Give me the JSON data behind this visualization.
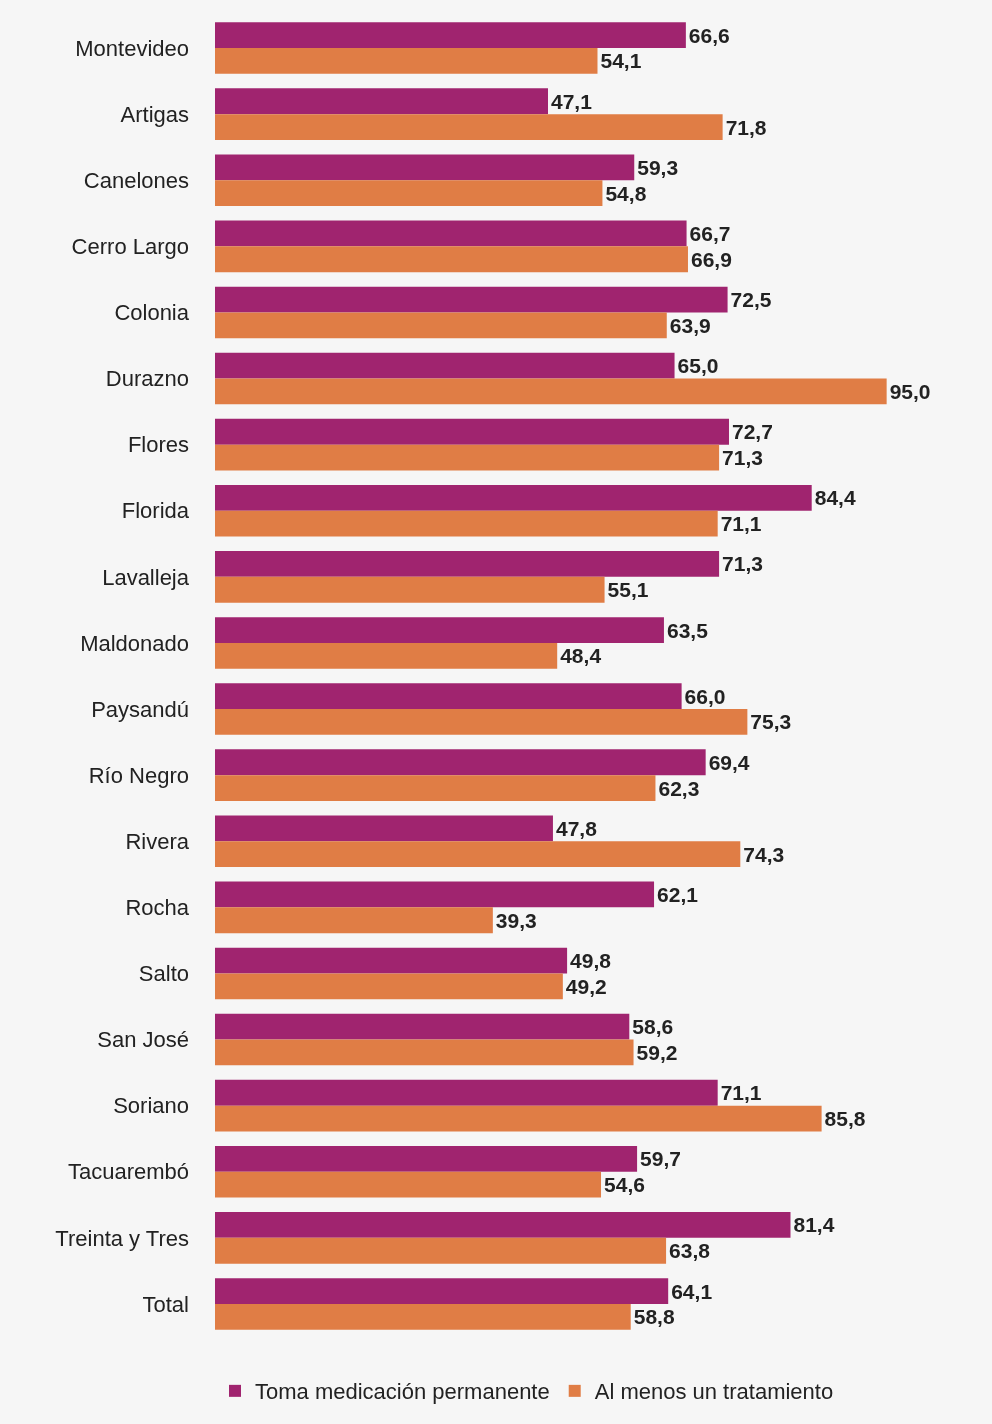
{
  "chart_data": {
    "type": "bar",
    "orientation": "horizontal",
    "legend": "bottom",
    "categories": [
      "Montevideo",
      "Artigas",
      "Canelones",
      "Cerro Largo",
      "Colonia",
      "Durazno",
      "Flores",
      "Florida",
      "Lavalleja",
      "Maldonado",
      "Paysandú",
      "Río Negro",
      "Rivera",
      "Rocha",
      "Salto",
      "San José",
      "Soriano",
      "Tacuarembó",
      "Treinta y Tres",
      "Total"
    ],
    "series": [
      {
        "name": "Toma medicación permanente",
        "color": "#a0246f",
        "values": [
          66.6,
          47.1,
          59.3,
          66.7,
          72.5,
          65.0,
          72.7,
          84.4,
          71.3,
          63.5,
          66.0,
          69.4,
          47.8,
          62.1,
          49.8,
          58.6,
          71.1,
          59.7,
          81.4,
          64.1
        ],
        "value_labels": [
          "66,6",
          "47,1",
          "59,3",
          "66,7",
          "72,5",
          "65,0",
          "72,7",
          "84,4",
          "71,3",
          "63,5",
          "66,0",
          "69,4",
          "47,8",
          "62,1",
          "49,8",
          "58,6",
          "71,1",
          "59,7",
          "81,4",
          "64,1"
        ]
      },
      {
        "name": "Al menos un tratamiento",
        "color": "#e07d45",
        "values": [
          54.1,
          71.8,
          54.8,
          66.9,
          63.9,
          95.0,
          71.3,
          71.1,
          55.1,
          48.4,
          75.3,
          62.3,
          74.3,
          39.3,
          49.2,
          59.2,
          85.8,
          54.6,
          63.8,
          58.8
        ],
        "value_labels": [
          "54,1",
          "71,8",
          "54,8",
          "66,9",
          "63,9",
          "95,0",
          "71,3",
          "71,1",
          "55,1",
          "48,4",
          "75,3",
          "62,3",
          "74,3",
          "39,3",
          "49,2",
          "59,2",
          "85,8",
          "54,6",
          "63,8",
          "58,8"
        ]
      }
    ]
  }
}
